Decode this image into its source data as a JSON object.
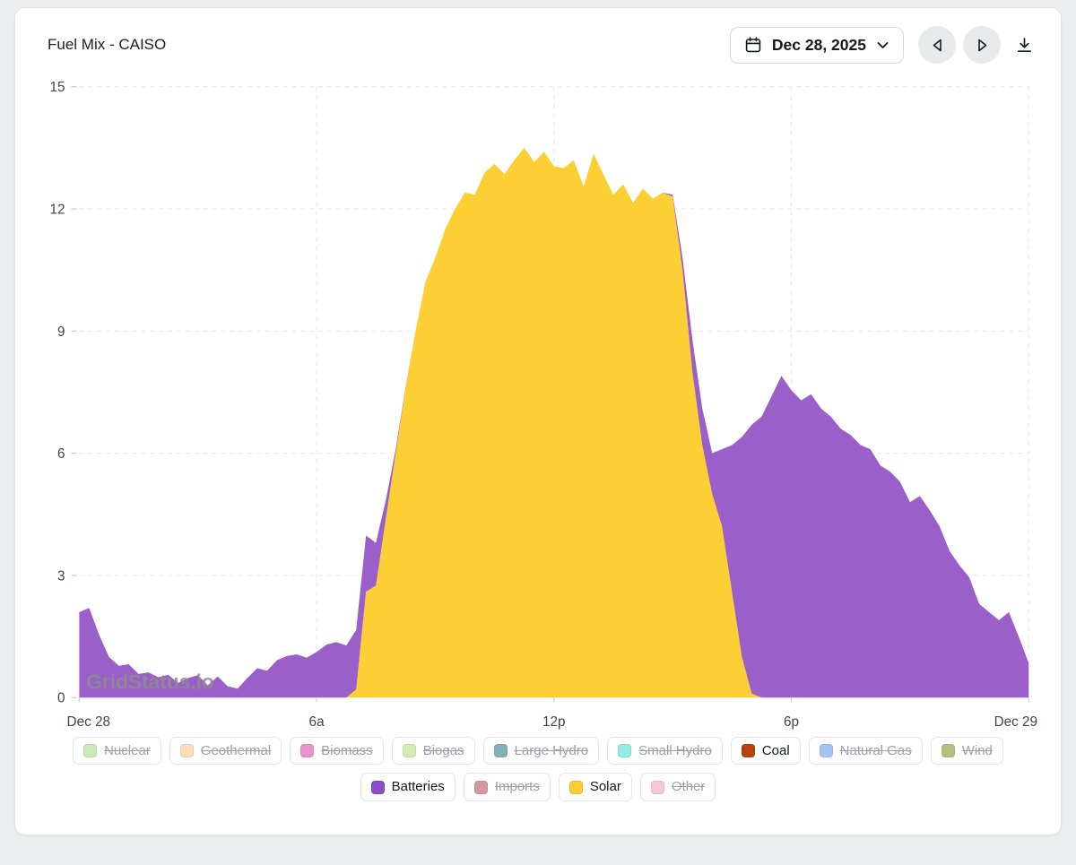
{
  "header": {
    "title": "Fuel Mix - CAISO",
    "date_picker": {
      "value": "Dec 28, 2025"
    }
  },
  "watermark": "GridStatus.io",
  "chart_data": {
    "type": "area",
    "stacked": true,
    "title": "Fuel Mix - CAISO",
    "x_unit": "hour of day",
    "x_start": 0,
    "x_step": 0.25,
    "ylim": [
      0,
      15
    ],
    "y_ticks": [
      0,
      3,
      6,
      9,
      12,
      15
    ],
    "x_ticks": [
      {
        "t": 0,
        "label": "Dec 28"
      },
      {
        "t": 6,
        "label": "6a"
      },
      {
        "t": 12,
        "label": "12p"
      },
      {
        "t": 18,
        "label": "6p"
      },
      {
        "t": 24,
        "label": "Dec 29"
      }
    ],
    "grid_vertical_t": [
      6,
      12,
      18,
      24
    ],
    "grid": "dashed",
    "series": [
      {
        "name": "Solar",
        "color": "#fccf35",
        "values": [
          0,
          0,
          0,
          0,
          0,
          0,
          0,
          0,
          0,
          0,
          0,
          0,
          0,
          0,
          0,
          0,
          0,
          0,
          0,
          0,
          0,
          0,
          0,
          0,
          0,
          0,
          0,
          0,
          0.2,
          2.6,
          2.75,
          4.4,
          6,
          7.6,
          9,
          10.2,
          10.8,
          11.5,
          12,
          12.4,
          12.35,
          12.9,
          13.1,
          12.85,
          13.2,
          13.5,
          13.15,
          13.4,
          13.05,
          13,
          13.2,
          12.55,
          13.35,
          12.85,
          12.35,
          12.6,
          12.15,
          12.5,
          12.25,
          12.4,
          12.3,
          10.5,
          8,
          6.2,
          5,
          4.2,
          2.6,
          1,
          0.1,
          0,
          0,
          0,
          0,
          0,
          0,
          0,
          0,
          0,
          0,
          0,
          0,
          0,
          0,
          0,
          0,
          0,
          0,
          0,
          0,
          0,
          0,
          0,
          0,
          0,
          0,
          0,
          0
        ]
      },
      {
        "name": "Batteries",
        "color": "#9b5fc9",
        "values": [
          2.1,
          2.2,
          1.55,
          1,
          0.78,
          0.82,
          0.58,
          0.62,
          0.5,
          0.56,
          0.36,
          0.48,
          0.55,
          0.3,
          0.52,
          0.28,
          0.22,
          0.48,
          0.72,
          0.66,
          0.92,
          1.02,
          1.06,
          0.98,
          1.12,
          1.3,
          1.36,
          1.28,
          1.46,
          1.38,
          1.05,
          0.45,
          0.1,
          0.02,
          0,
          0,
          0,
          0,
          0,
          0,
          0,
          0,
          0,
          0,
          0,
          0,
          0,
          0,
          0,
          0,
          0,
          0,
          0,
          0,
          0,
          0,
          0,
          0,
          0,
          0,
          0.05,
          0.3,
          0.8,
          0.9,
          1,
          1.9,
          3.6,
          5.4,
          6.6,
          6.9,
          7.4,
          7.9,
          7.55,
          7.3,
          7.45,
          7.1,
          6.9,
          6.6,
          6.45,
          6.2,
          6.1,
          5.7,
          5.55,
          5.3,
          4.8,
          4.95,
          4.6,
          4.2,
          3.6,
          3.25,
          2.95,
          2.3,
          2.1,
          1.9,
          2.1,
          1.5,
          0.85
        ]
      }
    ]
  },
  "legend": {
    "rows": [
      [
        {
          "label": "Nuclear",
          "color": "#bfe3a6",
          "active": false
        },
        {
          "label": "Geothermal",
          "color": "#fbd5ab",
          "active": false
        },
        {
          "label": "Biomass",
          "color": "#e678bd",
          "active": false
        },
        {
          "label": "Biogas",
          "color": "#cbe79e",
          "active": false
        },
        {
          "label": "Large Hydro",
          "color": "#649fa6",
          "active": false
        },
        {
          "label": "Small Hydro",
          "color": "#79e8dd",
          "active": false
        },
        {
          "label": "Coal",
          "color": "#b8430c",
          "active": true
        },
        {
          "label": "Natural Gas",
          "color": "#90b3ee",
          "active": false
        },
        {
          "label": "Wind",
          "color": "#a2af62",
          "active": false
        }
      ],
      [
        {
          "label": "Batteries",
          "color": "#8a4fc8",
          "active": true
        },
        {
          "label": "Imports",
          "color": "#c9808f",
          "active": false
        },
        {
          "label": "Solar",
          "color": "#fcce33",
          "active": true
        },
        {
          "label": "Other",
          "color": "#f3bcc9",
          "active": false
        }
      ]
    ]
  }
}
